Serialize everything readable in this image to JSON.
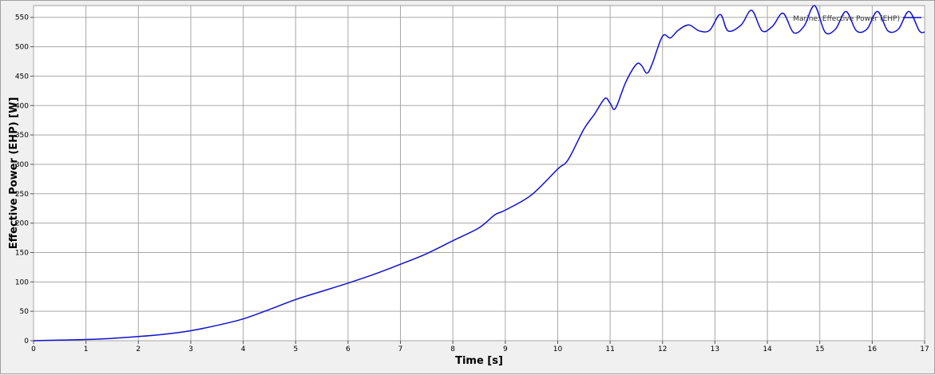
{
  "chart_data": {
    "type": "line",
    "title": "",
    "xlabel": "Time [s]",
    "ylabel": "Effective Power (EHP) [W]",
    "xlim": [
      0,
      17
    ],
    "ylim": [
      0,
      570
    ],
    "x_ticks": [
      "0",
      "1",
      "2",
      "3",
      "4",
      "5",
      "6",
      "7",
      "8",
      "9",
      "10",
      "11",
      "12",
      "13",
      "14",
      "15",
      "16",
      "17"
    ],
    "y_ticks": [
      "0",
      "50",
      "100",
      "150",
      "200",
      "250",
      "300",
      "350",
      "400",
      "450",
      "500",
      "550"
    ],
    "grid": true,
    "legend_position": "top-right",
    "series": [
      {
        "name": "Marine: Effective Power (EHP)",
        "color": "#1010d0",
        "x": [
          0,
          0.5,
          1,
          1.5,
          2,
          2.5,
          3,
          3.5,
          4,
          4.5,
          5,
          5.5,
          6,
          6.5,
          7,
          7.5,
          8,
          8.5,
          8.8,
          9,
          9.5,
          10,
          10.2,
          10.5,
          10.7,
          10.9,
          11.0,
          11.1,
          11.3,
          11.5,
          11.6,
          11.7,
          11.8,
          12.0,
          12.15,
          12.3,
          12.5,
          12.7,
          12.9,
          13.1,
          13.25,
          13.5,
          13.7,
          13.9,
          14.1,
          14.3,
          14.5,
          14.7,
          14.9,
          15.1,
          15.3,
          15.5,
          15.7,
          15.9,
          16.1,
          16.3,
          16.5,
          16.7,
          16.9,
          17.0
        ],
        "y": [
          0,
          1,
          2,
          4,
          7,
          11,
          17,
          26,
          37,
          53,
          70,
          84,
          98,
          113,
          130,
          148,
          170,
          192,
          214,
          222,
          248,
          292,
          308,
          360,
          385,
          412,
          404,
          395,
          440,
          470,
          468,
          455,
          470,
          518,
          515,
          528,
          537,
          527,
          528,
          555,
          527,
          537,
          562,
          527,
          535,
          557,
          524,
          535,
          570,
          525,
          530,
          560,
          527,
          530,
          560,
          527,
          530,
          560,
          527,
          525
        ]
      }
    ]
  }
}
